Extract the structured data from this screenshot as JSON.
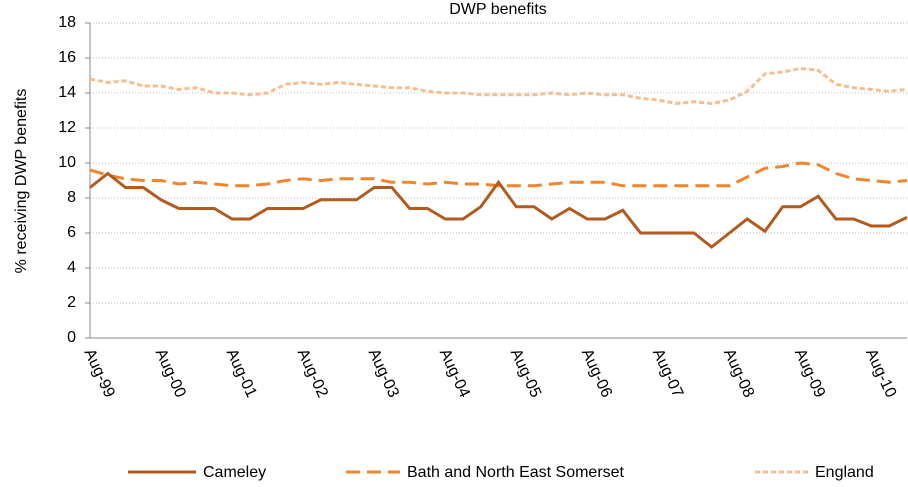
{
  "chart_data": {
    "type": "line",
    "title": "DWP benefits",
    "y_label": "% receiving DWP benefits",
    "categories": [
      "Aug-99",
      null,
      null,
      null,
      "Aug-00",
      null,
      null,
      null,
      "Aug-01",
      null,
      null,
      null,
      "Aug-02",
      null,
      null,
      null,
      "Aug-03",
      null,
      null,
      null,
      "Aug-04",
      null,
      null,
      null,
      "Aug-05",
      null,
      null,
      null,
      "Aug-06",
      null,
      null,
      null,
      "Aug-07",
      null,
      null,
      null,
      "Aug-08",
      null,
      null,
      null,
      "Aug-09",
      null,
      null,
      null,
      "Aug-10",
      null,
      null
    ],
    "series": [
      {
        "name": "Cameley",
        "color": "#b35a1f",
        "dash": "none",
        "values": [
          8.6,
          9.4,
          8.6,
          8.6,
          7.9,
          7.4,
          7.4,
          7.4,
          6.8,
          6.8,
          7.4,
          7.4,
          7.4,
          7.9,
          7.9,
          7.9,
          8.6,
          8.6,
          7.4,
          7.4,
          6.8,
          6.8,
          7.5,
          8.9,
          7.5,
          7.5,
          6.8,
          7.4,
          6.8,
          6.8,
          7.3,
          6.0,
          6.0,
          6.0,
          6.0,
          5.2,
          6.0,
          6.8,
          6.1,
          7.5,
          7.5,
          8.1,
          6.8,
          6.8,
          6.4,
          6.4,
          6.9
        ]
      },
      {
        "name": "Bath and North East Somerset",
        "color": "#f0852d",
        "dash": "14,7",
        "values": [
          9.6,
          9.3,
          9.1,
          9.0,
          9.0,
          8.8,
          8.9,
          8.8,
          8.7,
          8.7,
          8.8,
          9.0,
          9.1,
          9.0,
          9.1,
          9.1,
          9.1,
          8.9,
          8.9,
          8.8,
          8.9,
          8.8,
          8.8,
          8.7,
          8.7,
          8.7,
          8.8,
          8.9,
          8.9,
          8.9,
          8.7,
          8.7,
          8.7,
          8.7,
          8.7,
          8.7,
          8.7,
          9.2,
          9.7,
          9.8,
          10.0,
          9.9,
          9.4,
          9.1,
          9.0,
          8.9,
          9.0
        ]
      },
      {
        "name": "England",
        "color": "#f7bc8f",
        "dash": "5,3",
        "values": [
          14.8,
          14.6,
          14.7,
          14.4,
          14.4,
          14.2,
          14.3,
          14.0,
          14.0,
          13.9,
          14.0,
          14.5,
          14.6,
          14.5,
          14.6,
          14.5,
          14.4,
          14.3,
          14.3,
          14.1,
          14.0,
          14.0,
          13.9,
          13.9,
          13.9,
          13.9,
          14.0,
          13.9,
          14.0,
          13.9,
          13.9,
          13.7,
          13.6,
          13.4,
          13.5,
          13.4,
          13.6,
          14.1,
          15.1,
          15.2,
          15.4,
          15.3,
          14.5,
          14.3,
          14.2,
          14.1,
          14.2
        ]
      }
    ],
    "ylim": [
      0,
      18
    ],
    "yticks": [
      0,
      2,
      4,
      6,
      8,
      10,
      12,
      14,
      16,
      18
    ],
    "grid": true,
    "legend": "bottom"
  }
}
